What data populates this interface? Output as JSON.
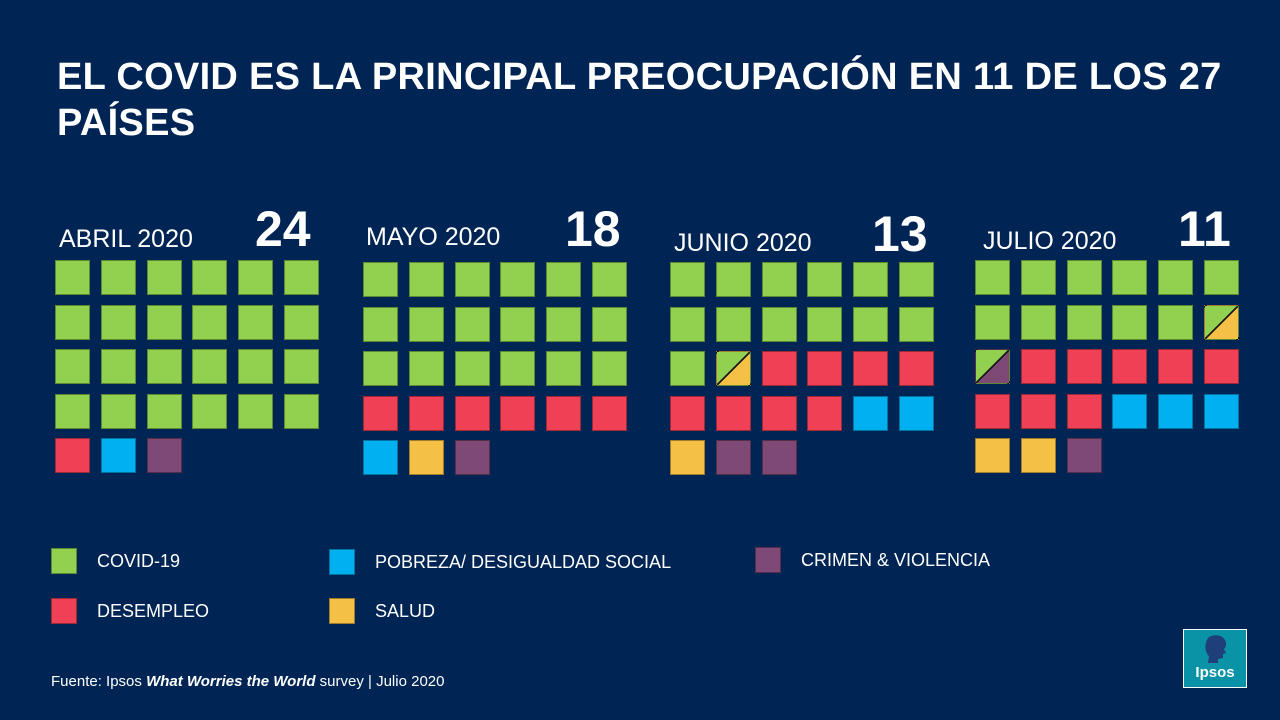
{
  "title": "EL COVID ES LA PRINCIPAL PREOCUPACIÓN EN 11 DE LOS 27 PAÍSES",
  "colors": {
    "covid": "#92d050",
    "desempleo": "#ef4056",
    "pobreza": "#00b0f0",
    "salud": "#f4c046",
    "crimen": "#7e4a75",
    "background": "#002554"
  },
  "chart_data": {
    "type": "waffle",
    "total_countries": 27,
    "categories": [
      "COVID-19",
      "DESEMPLEO",
      "POBREZA/ DESIGUALDAD SOCIAL",
      "SALUD",
      "CRIMEN & VIOLENCIA"
    ],
    "panels": [
      {
        "label": "ABRIL 2020",
        "count": "24",
        "cells": [
          "covid",
          "covid",
          "covid",
          "covid",
          "covid",
          "covid",
          "covid",
          "covid",
          "covid",
          "covid",
          "covid",
          "covid",
          "covid",
          "covid",
          "covid",
          "covid",
          "covid",
          "covid",
          "covid",
          "covid",
          "covid",
          "covid",
          "covid",
          "covid",
          "desempleo",
          "pobreza",
          "crimen"
        ]
      },
      {
        "label": "MAYO 2020",
        "count": "18",
        "cells": [
          "covid",
          "covid",
          "covid",
          "covid",
          "covid",
          "covid",
          "covid",
          "covid",
          "covid",
          "covid",
          "covid",
          "covid",
          "covid",
          "covid",
          "covid",
          "covid",
          "covid",
          "covid",
          "desempleo",
          "desempleo",
          "desempleo",
          "desempleo",
          "desempleo",
          "desempleo",
          "pobreza",
          "salud",
          "crimen"
        ]
      },
      {
        "label": "JUNIO 2020",
        "count": "13",
        "cells": [
          "covid",
          "covid",
          "covid",
          "covid",
          "covid",
          "covid",
          "covid",
          "covid",
          "covid",
          "covid",
          "covid",
          "covid",
          "covid",
          "covid/salud",
          "desempleo",
          "desempleo",
          "desempleo",
          "desempleo",
          "desempleo",
          "desempleo",
          "desempleo",
          "desempleo",
          "pobreza",
          "pobreza",
          "salud",
          "crimen",
          "crimen"
        ]
      },
      {
        "label": "JULIO 2020",
        "count": "11",
        "cells": [
          "covid",
          "covid",
          "covid",
          "covid",
          "covid",
          "covid",
          "covid",
          "covid",
          "covid",
          "covid",
          "covid",
          "covid/salud",
          "covid/crimen",
          "desempleo",
          "desempleo",
          "desempleo",
          "desempleo",
          "desempleo",
          "desempleo",
          "desempleo",
          "desempleo",
          "pobreza",
          "pobreza",
          "pobreza",
          "salud",
          "salud",
          "crimen"
        ]
      }
    ]
  },
  "legend": [
    {
      "key": "covid",
      "label": "COVID-19"
    },
    {
      "key": "pobreza",
      "label": "POBREZA/ DESIGUALDAD SOCIAL"
    },
    {
      "key": "crimen",
      "label": "CRIMEN & VIOLENCIA"
    },
    {
      "key": "desempleo",
      "label": "DESEMPLEO"
    },
    {
      "key": "salud",
      "label": "SALUD"
    }
  ],
  "source": {
    "prefix": "Fuente: Ipsos ",
    "bold": "What Worries the World",
    "suffix": " survey | Julio 2020"
  },
  "logo": {
    "text": "Ipsos"
  }
}
